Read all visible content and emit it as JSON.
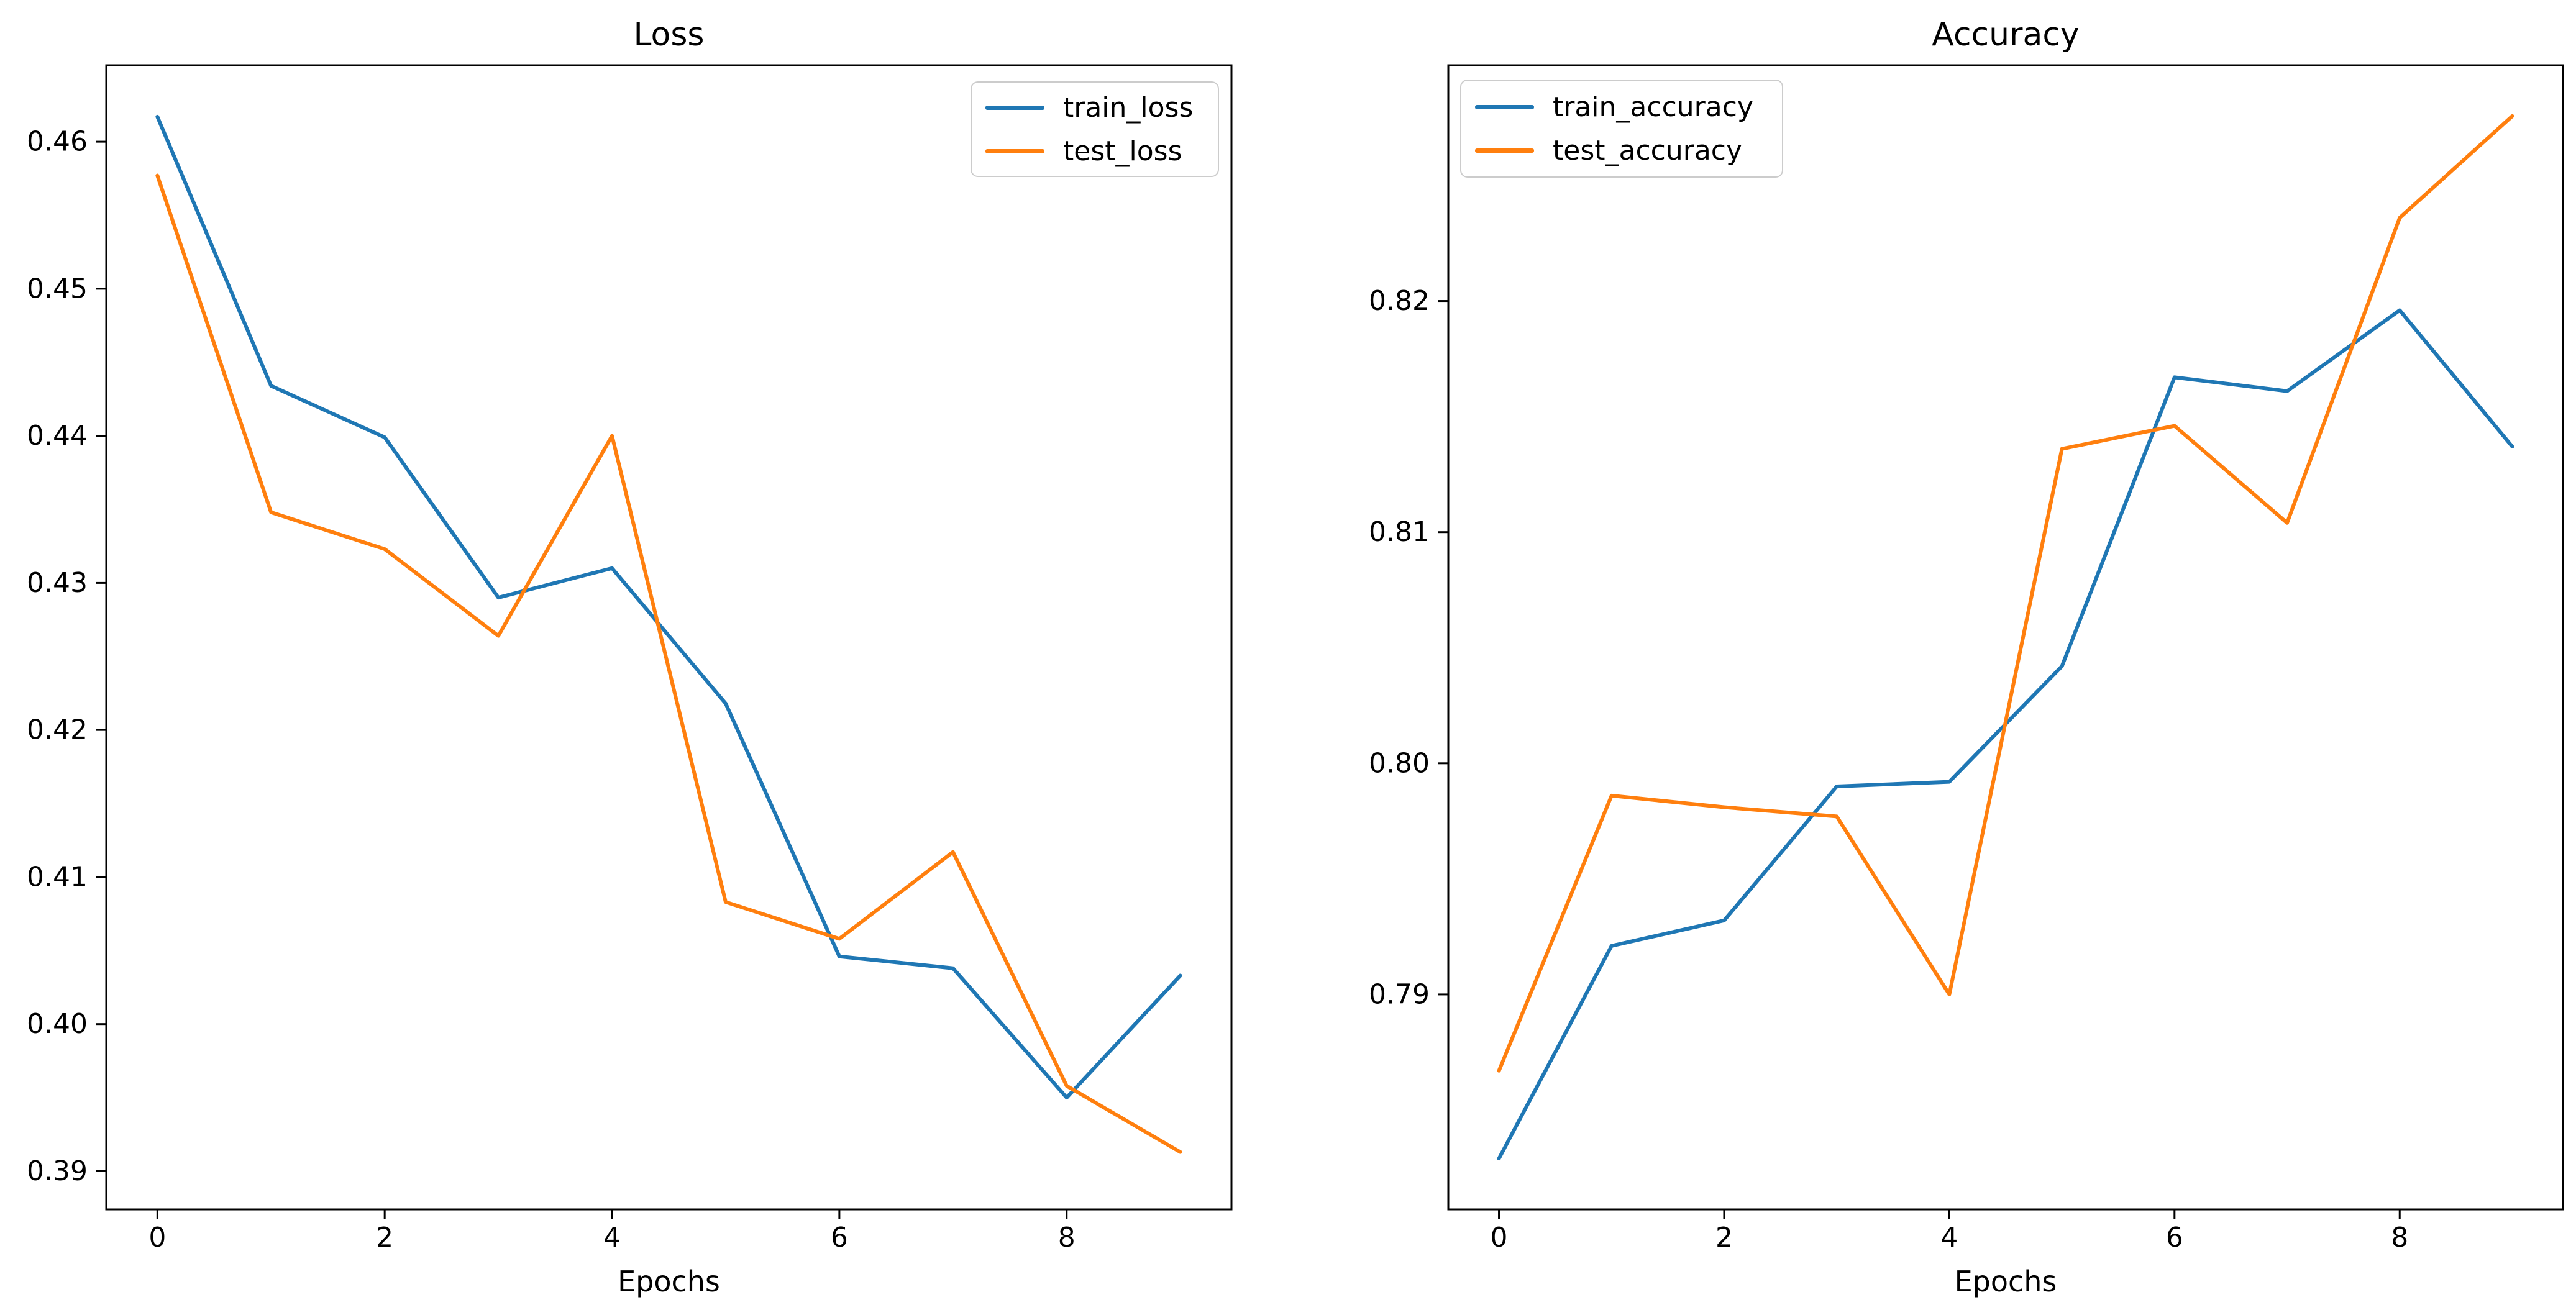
{
  "figure": {
    "background_color": "#ffffff",
    "text_color": "#000000",
    "spine_color": "#000000"
  },
  "chart_data": [
    {
      "type": "line",
      "title": "Loss",
      "xlabel": "Epochs",
      "ylabel": "",
      "grid": false,
      "x": [
        0,
        1,
        2,
        3,
        4,
        5,
        6,
        7,
        8,
        9
      ],
      "series": [
        {
          "name": "train_loss",
          "color": "#1f77b4",
          "values": [
            0.4617,
            0.4434,
            0.4399,
            0.429,
            0.431,
            0.4218,
            0.4046,
            0.4038,
            0.395,
            0.4033
          ]
        },
        {
          "name": "test_loss",
          "color": "#ff7f0e",
          "values": [
            0.4577,
            0.4348,
            0.4323,
            0.4264,
            0.44,
            0.4083,
            0.4058,
            0.4117,
            0.3958,
            0.3913
          ]
        }
      ],
      "xlim": [
        -0.45,
        9.45
      ],
      "ylim": [
        0.3874,
        0.4652
      ],
      "xticks": {
        "values": [
          0,
          2,
          4,
          6,
          8
        ],
        "labels": [
          "0",
          "2",
          "4",
          "6",
          "8"
        ]
      },
      "yticks": {
        "values": [
          0.39,
          0.4,
          0.41,
          0.42,
          0.43,
          0.44,
          0.45,
          0.46
        ],
        "labels": [
          "0.39",
          "0.40",
          "0.41",
          "0.42",
          "0.43",
          "0.44",
          "0.45",
          "0.46"
        ]
      },
      "legend": {
        "position": "upper-right",
        "entries": [
          "train_loss",
          "test_loss"
        ]
      }
    },
    {
      "type": "line",
      "title": "Accuracy",
      "xlabel": "Epochs",
      "ylabel": "",
      "grid": false,
      "x": [
        0,
        1,
        2,
        3,
        4,
        5,
        6,
        7,
        8,
        9
      ],
      "series": [
        {
          "name": "train_accuracy",
          "color": "#1f77b4",
          "values": [
            0.7829,
            0.7921,
            0.7932,
            0.799,
            0.7992,
            0.8042,
            0.8167,
            0.8161,
            0.8196,
            0.8137
          ]
        },
        {
          "name": "test_accuracy",
          "color": "#ff7f0e",
          "values": [
            0.7867,
            0.7986,
            0.7981,
            0.7977,
            0.79,
            0.8136,
            0.8146,
            0.8104,
            0.8236,
            0.828
          ]
        }
      ],
      "xlim": [
        -0.45,
        9.45
      ],
      "ylim": [
        0.7807,
        0.8302
      ],
      "xticks": {
        "values": [
          0,
          2,
          4,
          6,
          8
        ],
        "labels": [
          "0",
          "2",
          "4",
          "6",
          "8"
        ]
      },
      "yticks": {
        "values": [
          0.79,
          0.8,
          0.81,
          0.82
        ],
        "labels": [
          "0.79",
          "0.80",
          "0.81",
          "0.82"
        ]
      },
      "legend": {
        "position": "upper-left",
        "entries": [
          "train_accuracy",
          "test_accuracy"
        ]
      }
    }
  ]
}
